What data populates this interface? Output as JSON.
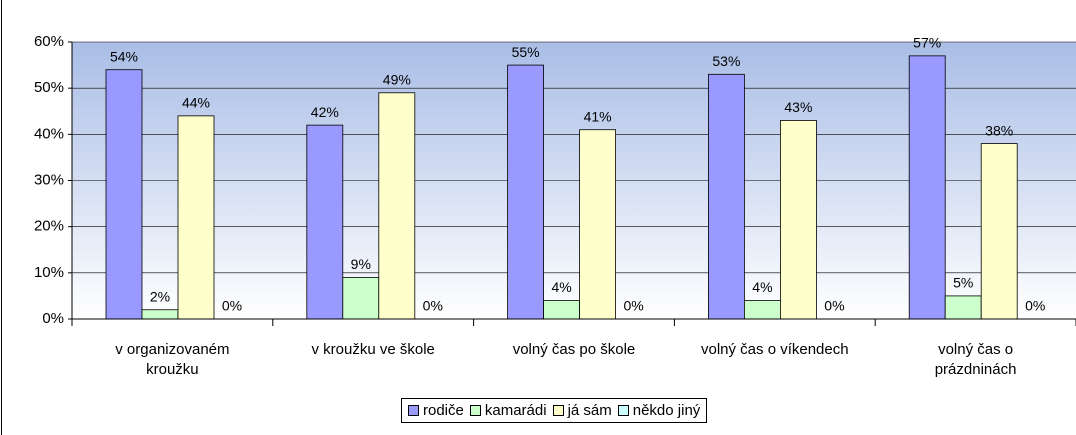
{
  "chart_data": {
    "type": "bar",
    "categories": [
      "v organizovaném\nkroužku",
      "v kroužku ve škole",
      "volný čas po škole",
      "volný čas o víkendech",
      "volný čas o\nprázdninách"
    ],
    "series": [
      {
        "name": "rodiče",
        "color": "#9999ff",
        "values": [
          54,
          42,
          55,
          53,
          57
        ],
        "value_labels": [
          "54%",
          "42%",
          "55%",
          "53%",
          "57%"
        ]
      },
      {
        "name": "kamarádi",
        "color": "#ccffcc",
        "values": [
          2,
          9,
          4,
          4,
          5
        ],
        "value_labels": [
          "2%",
          "9%",
          "4%",
          "4%",
          "5%"
        ]
      },
      {
        "name": "já sám",
        "color": "#ffffcc",
        "values": [
          44,
          49,
          41,
          43,
          38
        ],
        "value_labels": [
          "44%",
          "49%",
          "41%",
          "43%",
          "38%"
        ]
      },
      {
        "name": "někdo jiný",
        "color": "#ccffff",
        "values": [
          0,
          0,
          0,
          0,
          0
        ],
        "value_labels": [
          "0%",
          "0%",
          "0%",
          "0%",
          "0%"
        ]
      }
    ],
    "ylim": [
      0,
      60
    ],
    "yticks": [
      {
        "value": 0,
        "label": "0%"
      },
      {
        "value": 10,
        "label": "10%"
      },
      {
        "value": 20,
        "label": "20%"
      },
      {
        "value": 30,
        "label": "30%"
      },
      {
        "value": 40,
        "label": "40%"
      },
      {
        "value": 50,
        "label": "50%"
      },
      {
        "value": 60,
        "label": "60%"
      }
    ],
    "grid": true,
    "legend": "bottom"
  }
}
